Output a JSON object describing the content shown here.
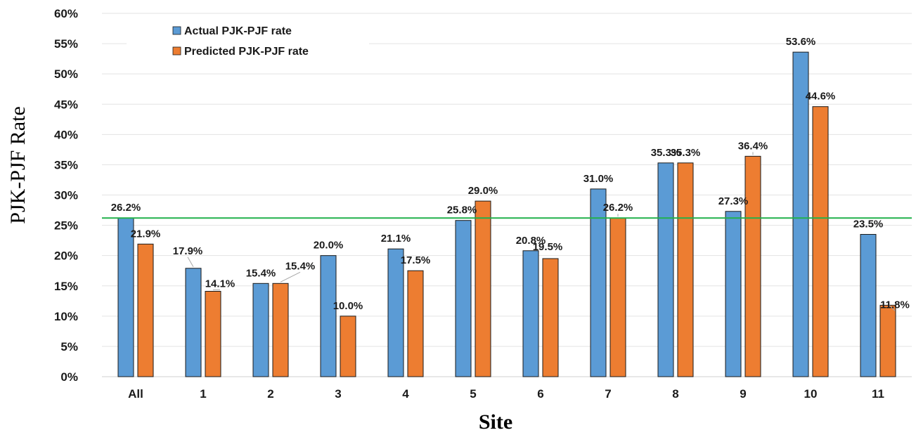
{
  "chart_data": {
    "type": "bar",
    "categories": [
      "All",
      "1",
      "2",
      "3",
      "4",
      "5",
      "6",
      "7",
      "8",
      "9",
      "10",
      "11"
    ],
    "series": [
      {
        "name": "Actual PJK-PJF rate",
        "color": "#5b9bd5",
        "values": [
          26.2,
          17.9,
          15.4,
          20.0,
          21.1,
          25.8,
          20.8,
          31.0,
          35.3,
          27.3,
          53.6,
          23.5
        ],
        "labels": [
          "26.2%",
          "17.9%",
          "15.4%",
          "20.0%",
          "21.1%",
          "25.8%",
          "20.8%",
          "31.0%",
          "35.3%",
          "27.3%",
          "53.6%",
          "23.5%"
        ]
      },
      {
        "name": "Predicted PJK-PJF rate",
        "color": "#ed7d31",
        "values": [
          21.9,
          14.1,
          15.4,
          10.0,
          17.5,
          29.0,
          19.5,
          26.2,
          35.3,
          36.4,
          44.6,
          11.8
        ],
        "labels": [
          "21.9%",
          "14.1%",
          "15.4%",
          "10.0%",
          "17.5%",
          "29.0%",
          "19.5%",
          "26.2%",
          "35.3%",
          "36.4%",
          "44.6%",
          "11.8%"
        ]
      }
    ],
    "reference_line": {
      "value": 26.2,
      "color": "#22b14c"
    },
    "ylim": [
      0,
      60
    ],
    "yticks": [
      "0%",
      "5%",
      "10%",
      "15%",
      "20%",
      "25%",
      "30%",
      "35%",
      "40%",
      "45%",
      "50%",
      "55%",
      "60%"
    ],
    "ylabel": "PJK-PJF Rate",
    "xlabel": "Site",
    "grid": true,
    "legend_position": "top-left"
  }
}
